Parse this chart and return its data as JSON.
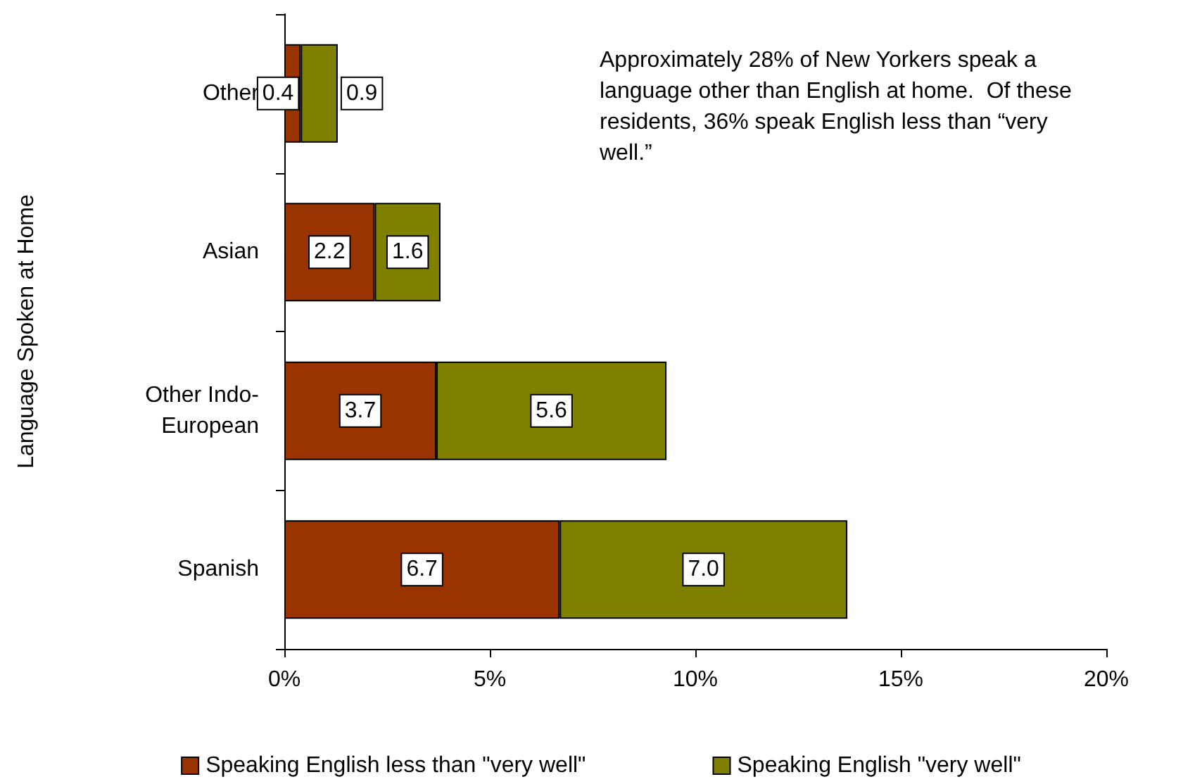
{
  "chart_data": {
    "type": "bar",
    "orientation": "horizontal",
    "stacked": true,
    "ylabel": "Language Spoken at Home",
    "categories": [
      "Other",
      "Asian",
      "Other Indo-European",
      "Spanish"
    ],
    "series": [
      {
        "name": "Speaking English less than \"very well\"",
        "color": "#993300",
        "values": [
          0.4,
          2.2,
          3.7,
          6.7
        ],
        "value_labels": [
          "0.4",
          "2.2",
          "3.7",
          "6.7"
        ]
      },
      {
        "name": "Speaking English \"very well\"",
        "color": "#808000",
        "values": [
          0.9,
          1.6,
          5.6,
          7.0
        ],
        "value_labels": [
          "0.9",
          "1.6",
          "5.6",
          "7.0"
        ]
      }
    ],
    "xlim": [
      0,
      20
    ],
    "xticks": [
      {
        "value": 0,
        "label": "0%"
      },
      {
        "value": 5,
        "label": "5%"
      },
      {
        "value": 10,
        "label": "10%"
      },
      {
        "value": 15,
        "label": "15%"
      },
      {
        "value": 20,
        "label": "20%"
      }
    ],
    "grid": false,
    "legend": "bottom",
    "annotations": [
      "Approximately 28% of New Yorkers speak a language other than English at home.  Of these residents, 36% speak English less than “very well.”"
    ]
  }
}
